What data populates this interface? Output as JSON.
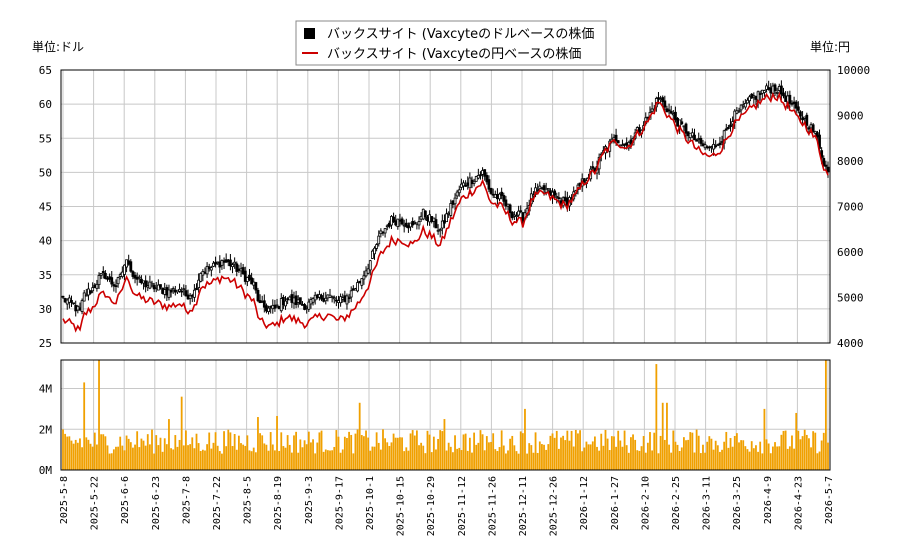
{
  "chart_data": {
    "type": "stock-candlestick-with-volume",
    "legend": {
      "placement": "top-center",
      "entries": [
        {
          "label": "バックスサイト (Vaxcyteのドルベースの株価",
          "color": "#000000",
          "marker": "square"
        },
        {
          "label": "バックスサイト (Vaxcyteの円ベースの株価",
          "color": "#cc0000",
          "marker": "line"
        }
      ]
    },
    "left_unit_label": "単位:ドル",
    "right_unit_label": "単位:円",
    "price_axis_left": {
      "min": 25,
      "max": 65,
      "ticks": [
        "25",
        "30",
        "35",
        "40",
        "45",
        "50",
        "55",
        "60",
        "65"
      ]
    },
    "price_axis_right": {
      "min": 4000,
      "max": 10000,
      "ticks": [
        "4000",
        "5000",
        "6000",
        "7000",
        "8000",
        "9000",
        "10000"
      ]
    },
    "volume_axis": {
      "min": 0,
      "max": 5400000,
      "ticks": [
        {
          "value": 0,
          "label": "0M"
        },
        {
          "value": 2000000,
          "label": "2M"
        },
        {
          "value": 4000000,
          "label": "4M"
        }
      ]
    },
    "x_tick_labels": [
      "2025-5-8",
      "2025-5-22",
      "2025-6-6",
      "2025-6-23",
      "2025-7-8",
      "2025-7-22",
      "2025-8-5",
      "2025-8-19",
      "2025-9-3",
      "2025-9-17",
      "2025-10-1",
      "2025-10-15",
      "2025-10-29",
      "2025-11-12",
      "2025-11-26",
      "2025-12-11",
      "2025-12-26",
      "2026-1-12",
      "2026-1-27",
      "2026-2-10",
      "2026-2-25",
      "2026-3-11",
      "2026-3-25",
      "2026-4-9",
      "2026-4-23",
      "2026-5-7"
    ],
    "colors": {
      "candle": "#000000",
      "yen_line": "#cc0000",
      "volume_bar": "#f0a000",
      "grid": "#c8c8c8"
    },
    "trading_days": 252,
    "usd_price_anchors": [
      [
        0,
        31.5
      ],
      [
        5,
        30.5
      ],
      [
        8,
        29.5
      ],
      [
        10,
        32
      ],
      [
        14,
        33
      ],
      [
        17,
        34.5
      ],
      [
        20,
        35
      ],
      [
        22,
        34
      ],
      [
        25,
        33.5
      ],
      [
        27,
        34.5
      ],
      [
        29,
        36.5
      ],
      [
        31,
        37
      ],
      [
        33,
        35
      ],
      [
        36,
        34
      ],
      [
        40,
        33.5
      ],
      [
        45,
        33
      ],
      [
        50,
        32.5
      ],
      [
        55,
        33
      ],
      [
        58,
        32
      ],
      [
        62,
        32.5
      ],
      [
        65,
        35.5
      ],
      [
        70,
        36
      ],
      [
        75,
        37
      ],
      [
        80,
        36.5
      ],
      [
        85,
        35
      ],
      [
        90,
        33.5
      ],
      [
        93,
        30.5
      ],
      [
        97,
        30
      ],
      [
        100,
        30
      ],
      [
        105,
        31.5
      ],
      [
        110,
        31
      ],
      [
        115,
        30.5
      ],
      [
        120,
        31.5
      ],
      [
        125,
        32
      ],
      [
        130,
        31
      ],
      [
        135,
        32
      ],
      [
        140,
        34
      ],
      [
        145,
        37
      ],
      [
        150,
        41
      ],
      [
        155,
        43
      ],
      [
        160,
        43
      ],
      [
        165,
        42
      ],
      [
        170,
        44
      ],
      [
        174,
        43
      ],
      [
        178,
        41.5
      ],
      [
        183,
        45
      ],
      [
        188,
        48
      ],
      [
        193,
        49
      ],
      [
        198,
        50
      ],
      [
        202,
        47
      ],
      [
        207,
        46
      ],
      [
        212,
        44
      ],
      [
        217,
        43.5
      ],
      [
        222,
        47
      ],
      [
        227,
        47.5
      ],
      [
        232,
        46.5
      ],
      [
        237,
        45.5
      ],
      [
        242,
        47
      ],
      [
        246,
        49
      ],
      [
        251,
        50.5
      ],
      [
        256,
        53.5
      ],
      [
        261,
        55
      ],
      [
        266,
        54
      ],
      [
        271,
        56
      ],
      [
        276,
        58
      ],
      [
        281,
        61
      ],
      [
        286,
        59
      ],
      [
        291,
        57
      ],
      [
        296,
        55.5
      ],
      [
        301,
        54
      ],
      [
        306,
        53.5
      ],
      [
        311,
        55
      ],
      [
        316,
        58
      ],
      [
        321,
        59.5
      ],
      [
        326,
        61
      ],
      [
        331,
        62
      ],
      [
        336,
        62.5
      ],
      [
        341,
        61
      ],
      [
        346,
        59
      ],
      [
        351,
        57.5
      ],
      [
        356,
        55
      ],
      [
        359,
        51.5
      ],
      [
        361,
        50
      ]
    ],
    "volume_scale": "shares"
  }
}
